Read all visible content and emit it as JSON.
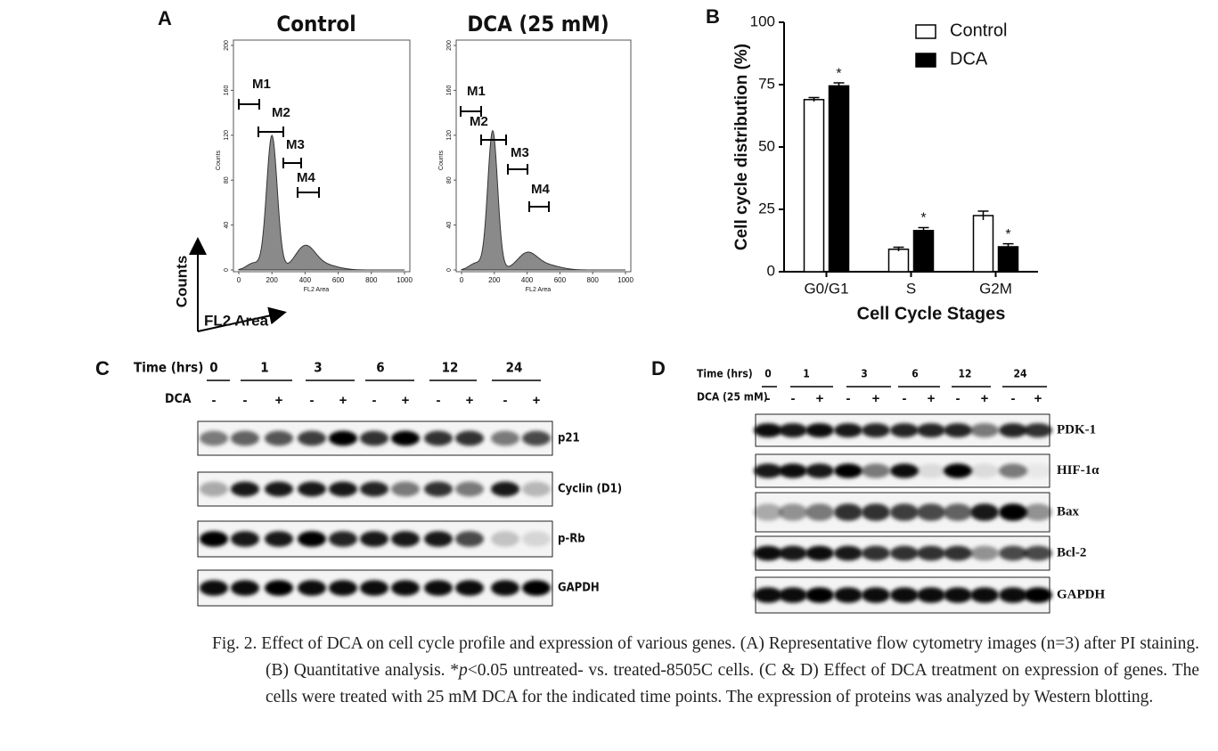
{
  "panel_labels": [
    "A",
    "B",
    "C",
    "D"
  ],
  "flow_cytometry": {
    "arrow_y_label": "Counts",
    "arrow_x_label": "FL2 Area",
    "plots": [
      {
        "title": "Control",
        "gates": [
          "M1",
          "M2",
          "M3",
          "M4"
        ],
        "xlabel": "FL2 Area",
        "ylabel": "Counts",
        "xlim": [
          0,
          1000
        ],
        "xticks": [
          0,
          200,
          400,
          600,
          800,
          1000
        ],
        "ylim": [
          0,
          200
        ],
        "yticks": [
          0,
          40,
          80,
          120,
          160,
          200
        ]
      },
      {
        "title": "DCA (25 mM)",
        "gates": [
          "M1",
          "M2",
          "M3",
          "M4"
        ],
        "xlabel": "FL2 Area",
        "ylabel": "Counts",
        "xlim": [
          0,
          1000
        ],
        "xticks": [
          0,
          200,
          400,
          600,
          800,
          1000
        ],
        "ylim": [
          0,
          200
        ],
        "yticks": [
          0,
          40,
          80,
          120,
          160,
          200
        ]
      }
    ]
  },
  "chart_data": {
    "type": "bar",
    "ylabel": "Cell cycle distribution (%)",
    "xlabel": "Cell Cycle Stages",
    "categories": [
      "G0/G1",
      "S",
      "G2M"
    ],
    "series": [
      {
        "name": "Control",
        "color": "#ffffff",
        "values": [
          69,
          9,
          22.5
        ],
        "errors": [
          0.8,
          0.8,
          1.8
        ]
      },
      {
        "name": "DCA",
        "color": "#000000",
        "values": [
          74.5,
          16.5,
          10
        ],
        "errors": [
          1.2,
          1.2,
          1.2
        ],
        "significance": [
          "*",
          "*",
          "*"
        ]
      }
    ],
    "ylim": [
      0,
      100
    ],
    "yticks": [
      0,
      25,
      50,
      75,
      100
    ],
    "legend": "top-right"
  },
  "blots": [
    {
      "time_label": "Time (hrs)",
      "times": [
        "0",
        "1",
        "3",
        "6",
        "12",
        "24"
      ],
      "treatment_label": "DCA",
      "treatment": [
        "-",
        "-",
        "+",
        "-",
        "+",
        "-",
        "+",
        "-",
        "+",
        "-",
        "+"
      ],
      "rows": [
        "p21",
        "Cyclin (D1)",
        "p-Rb",
        "GAPDH"
      ]
    },
    {
      "time_label": "Time (hrs)",
      "times": [
        "0",
        "1",
        "3",
        "6",
        "12",
        "24"
      ],
      "treatment_label": "DCA (25 mM)",
      "treatment": [
        "-",
        "-",
        "+",
        "-",
        "+",
        "-",
        "+",
        "-",
        "+",
        "-",
        "+"
      ],
      "rows": [
        "PDK-1",
        "HIF-1α",
        "Bax",
        "Bcl-2",
        "GAPDH"
      ]
    }
  ],
  "caption": [
    "Fig. 2. Effect of DCA on cell cycle profile and expression of various genes. (A) Representative flow cytometry images (n=3) after PI staining. (B) Quantitative analysis. *",
    "p",
    "<0.05 untreated- vs. treated-8505C cells. (C & D) Effect of DCA treatment on expression of genes. The cells were treated with 25 mM DCA for the indicated time points. The expression of proteins was analyzed by Western blotting."
  ]
}
